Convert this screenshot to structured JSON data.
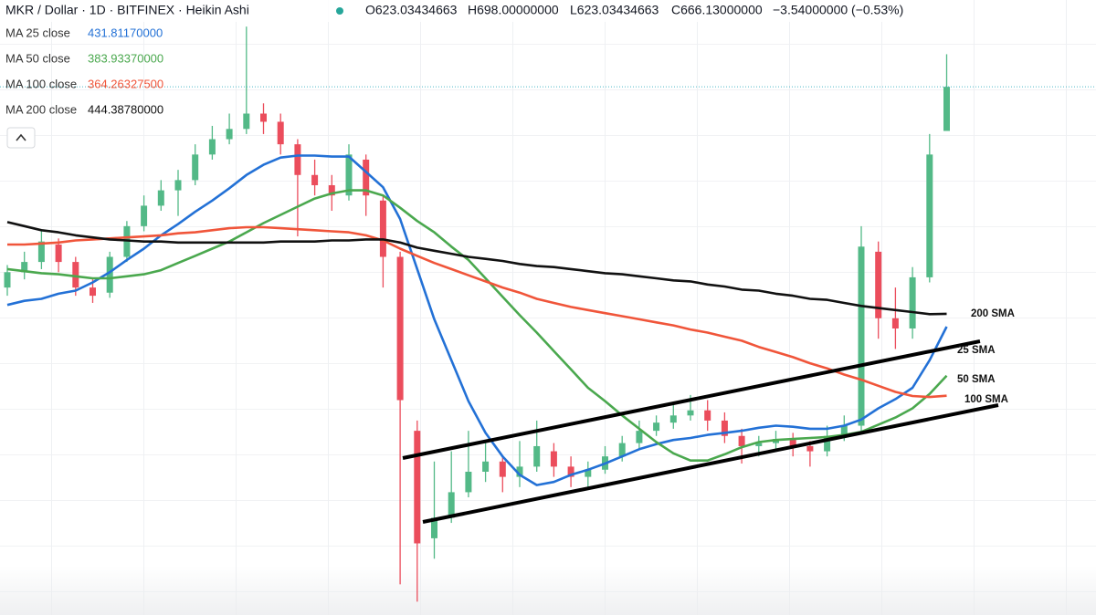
{
  "chart_data": {
    "type": "candlestick",
    "title": "MKR / Dollar · 1D · BITFINEX · Heikin Ashi",
    "header_values": [
      "O623.03434663",
      "H698.00000000",
      "L623.03434663",
      "C666.13000000",
      "−3.54000000 (−0.53%)"
    ],
    "up_color": "#53b987",
    "down_color": "#eb4d5c",
    "price_line_color": "#4db6c6",
    "ylim": [
      150,
      751
    ],
    "open": [
      470,
      485,
      495,
      512,
      495,
      470,
      465,
      500,
      530,
      550,
      565,
      575,
      600,
      615,
      625,
      640,
      632,
      610,
      580,
      570,
      560,
      595,
      555,
      500,
      330,
      225,
      245,
      270,
      290,
      300,
      285,
      295,
      310,
      295,
      285,
      292,
      305,
      318,
      330,
      338,
      345,
      350,
      340,
      325,
      315,
      318,
      322,
      315,
      310,
      325,
      335,
      505,
      440,
      430,
      480,
      623.03434663
    ],
    "close": [
      485,
      495,
      515,
      495,
      470,
      462,
      500,
      530,
      550,
      565,
      575,
      600,
      615,
      625,
      640,
      632,
      610,
      580,
      570,
      560,
      600,
      560,
      500,
      360,
      220,
      245,
      270,
      290,
      300,
      285,
      295,
      315,
      295,
      285,
      292,
      305,
      318,
      330,
      338,
      345,
      350,
      340,
      325,
      315,
      318,
      322,
      315,
      310,
      325,
      335,
      510,
      440,
      430,
      480,
      600,
      666.13
    ],
    "high": [
      492,
      505,
      525,
      518,
      500,
      478,
      505,
      535,
      560,
      575,
      585,
      610,
      628,
      640,
      725,
      650,
      640,
      615,
      595,
      580,
      610,
      600,
      560,
      505,
      340,
      300,
      310,
      330,
      320,
      305,
      320,
      340,
      318,
      305,
      300,
      315,
      325,
      340,
      345,
      358,
      365,
      360,
      348,
      332,
      325,
      330,
      328,
      320,
      335,
      345,
      530,
      515,
      470,
      490,
      620,
      698
    ],
    "low": [
      462,
      478,
      488,
      485,
      462,
      455,
      460,
      495,
      525,
      545,
      540,
      570,
      595,
      610,
      620,
      620,
      600,
      520,
      560,
      545,
      555,
      540,
      470,
      180,
      163,
      205,
      240,
      265,
      280,
      270,
      275,
      290,
      285,
      275,
      275,
      288,
      300,
      312,
      325,
      332,
      340,
      330,
      318,
      298,
      305,
      312,
      305,
      295,
      305,
      320,
      330,
      420,
      410,
      420,
      475,
      623.03434663
    ],
    "series": [
      {
        "name": "MA 25 close",
        "legend_value": "431.81170000",
        "color": "#2371d6",
        "values": [
          453,
          457,
          459,
          464,
          467,
          475,
          485,
          497,
          508,
          521,
          532,
          544,
          555,
          567,
          580,
          590,
          597,
          599,
          599,
          598,
          598,
          583,
          568,
          537,
          488,
          439,
          399,
          359,
          328,
          305,
          287,
          277,
          280,
          287,
          292,
          298,
          305,
          312,
          317,
          321,
          323,
          326,
          328,
          330,
          333,
          335,
          334,
          332,
          332,
          335,
          341,
          352,
          361,
          372,
          399,
          431.8117
        ]
      },
      {
        "name": "MA 50 close",
        "legend_value": "383.93370000",
        "color": "#4aa84e",
        "values": [
          488,
          486,
          484,
          483,
          481,
          479,
          479,
          481,
          483,
          487,
          494,
          501,
          508,
          515,
          524,
          533,
          541,
          549,
          557,
          562,
          565,
          565,
          560,
          548,
          535,
          524,
          510,
          497,
          479,
          461,
          443,
          426,
          408,
          390,
          372,
          359,
          345,
          332,
          319,
          308,
          301,
          301,
          307,
          314,
          319,
          321,
          322,
          323,
          324,
          326,
          329,
          336,
          343,
          352,
          366,
          383.9337
        ]
      },
      {
        "name": "MA 100 close",
        "legend_value": "364.26327500",
        "color": "#f0553a",
        "values": [
          512,
          512,
          513,
          514,
          516,
          517,
          518,
          519,
          520,
          521,
          523,
          524,
          526,
          528,
          529,
          529,
          528,
          527,
          526,
          525,
          524,
          521,
          516,
          508,
          501,
          494,
          488,
          482,
          476,
          470,
          465,
          459,
          455,
          451,
          448,
          445,
          442,
          439,
          436,
          433,
          429,
          426,
          422,
          418,
          412,
          407,
          402,
          396,
          391,
          385,
          380,
          374,
          368,
          364,
          363,
          364.263275
        ]
      },
      {
        "name": "MA 200 close",
        "legend_value": "444.38780000",
        "color": "#111111",
        "values": [
          534,
          530,
          526,
          524,
          521,
          519,
          517,
          516,
          515,
          515,
          514,
          514,
          514,
          514,
          514,
          514,
          515,
          515,
          515,
          516,
          516,
          517,
          517,
          514,
          509,
          506,
          503,
          500,
          498,
          496,
          493,
          491,
          490,
          488,
          486,
          484,
          483,
          481,
          479,
          477,
          476,
          473,
          471,
          468,
          467,
          464,
          462,
          459,
          458,
          455,
          452,
          450,
          448,
          446,
          444,
          444.3878
        ]
      }
    ],
    "annotations": [
      "200 SMA",
      "25 SMA",
      "50 SMA",
      "100 SMA"
    ]
  }
}
